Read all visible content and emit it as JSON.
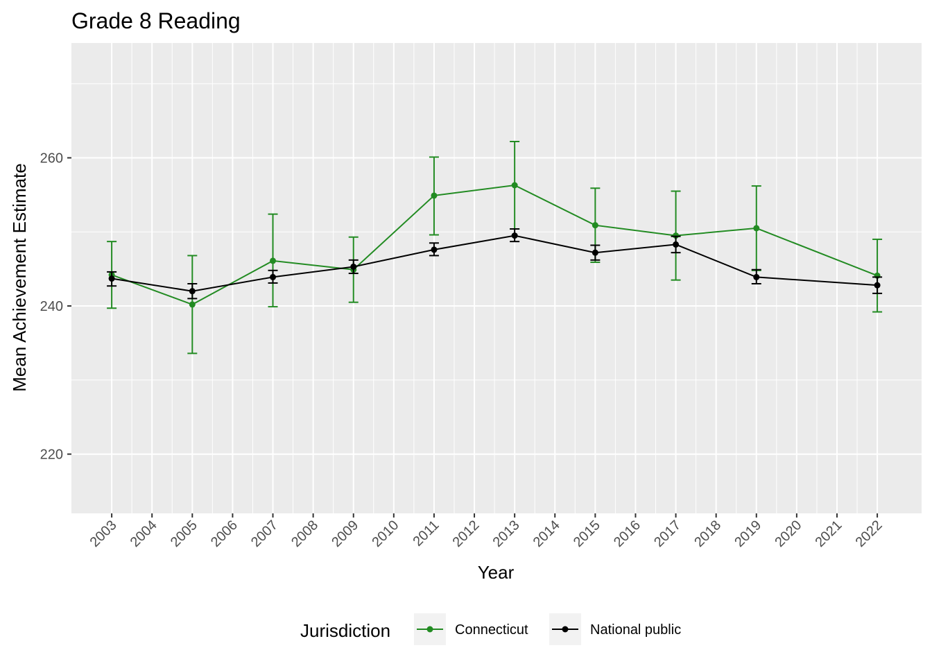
{
  "chart_data": {
    "type": "line",
    "title": "Grade 8 Reading",
    "xlabel": "Year",
    "ylabel": "Mean Achievement Estimate",
    "x_ticks": [
      "2003",
      "2004",
      "2005",
      "2006",
      "2007",
      "2008",
      "2009",
      "2010",
      "2011",
      "2012",
      "2013",
      "2014",
      "2015",
      "2016",
      "2017",
      "2018",
      "2019",
      "2020",
      "2021",
      "2022"
    ],
    "y_ticks": [
      220,
      240,
      260
    ],
    "xlim": [
      2002,
      2023.1
    ],
    "ylim": [
      212,
      275.5
    ],
    "grid": true,
    "legend": {
      "title": "Jurisdiction",
      "position": "bottom"
    },
    "series": [
      {
        "name": "Connecticut",
        "color": "#228B22",
        "x": [
          2003,
          2005,
          2007,
          2009,
          2011,
          2013,
          2015,
          2017,
          2019,
          2022
        ],
        "y": [
          244.2,
          240.2,
          246.1,
          244.9,
          254.9,
          256.3,
          250.9,
          249.5,
          250.5,
          244.1
        ],
        "lower": [
          239.7,
          233.6,
          239.9,
          240.5,
          249.6,
          250.4,
          245.9,
          243.5,
          244.8,
          239.2
        ],
        "upper": [
          248.7,
          246.8,
          252.4,
          249.3,
          260.1,
          262.2,
          255.9,
          255.5,
          256.2,
          249.0
        ]
      },
      {
        "name": "National public",
        "color": "#000000",
        "x": [
          2003,
          2005,
          2007,
          2009,
          2011,
          2013,
          2015,
          2017,
          2019,
          2022
        ],
        "y": [
          243.7,
          242.0,
          243.9,
          245.3,
          247.6,
          249.5,
          247.2,
          248.3,
          243.9,
          242.8
        ],
        "lower": [
          242.7,
          241.0,
          243.1,
          244.4,
          246.8,
          248.7,
          246.2,
          247.2,
          243.0,
          241.7
        ],
        "upper": [
          244.6,
          243.0,
          244.8,
          246.2,
          248.5,
          250.4,
          248.2,
          249.4,
          244.9,
          243.9
        ]
      }
    ]
  }
}
